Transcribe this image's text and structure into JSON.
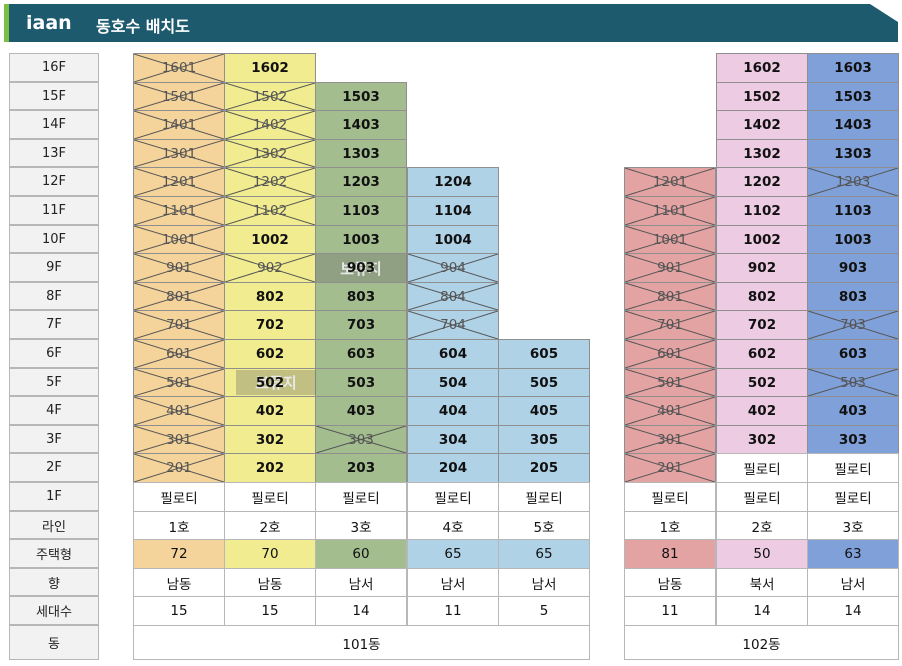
{
  "header": {
    "logo": "iaan",
    "title": "동호수 배치도"
  },
  "colors": {
    "header_bg": "#1e5a6e",
    "header_accent": "#7cc043",
    "b101_line1": "#f5d49b",
    "b101_line2": "#f0ec8f",
    "b101_line3": "#a3bd8f",
    "b101_line4": "#afd2e6",
    "b101_line5": "#afd2e6",
    "b102_line1": "#e3a3a3",
    "b102_line2": "#edcbe3",
    "b102_line3": "#7fa0d8"
  },
  "floor_labels": [
    "16F",
    "15F",
    "14F",
    "13F",
    "12F",
    "11F",
    "10F",
    "9F",
    "8F",
    "7F",
    "6F",
    "5F",
    "4F",
    "3F",
    "2F",
    "1F"
  ],
  "row_labels": {
    "line": "라인",
    "type": "주택형",
    "facing": "향",
    "households": "세대수",
    "building": "동"
  },
  "piloti": "필로티",
  "reserved_label": "보류지",
  "buildings": [
    {
      "name": "101동",
      "columns": [
        {
          "line": "1호",
          "type": "72",
          "facing": "남동",
          "households": "15",
          "color": "#f5d49b",
          "top_floor": 16,
          "piloti": true,
          "sold_floors": [
            16,
            15,
            14,
            13,
            12,
            11,
            10,
            9,
            8,
            7,
            6,
            5,
            4,
            3,
            2
          ]
        },
        {
          "line": "2호",
          "type": "70",
          "facing": "남동",
          "households": "15",
          "color": "#f0ec8f",
          "top_floor": 16,
          "piloti": true,
          "sold_floors": [
            15,
            14,
            13,
            12,
            11,
            9
          ]
        },
        {
          "line": "3호",
          "type": "60",
          "facing": "남서",
          "households": "14",
          "color": "#a3bd8f",
          "top_floor": 15,
          "piloti": true,
          "sold_floors": [
            3
          ]
        },
        {
          "line": "4호",
          "type": "65",
          "facing": "남서",
          "households": "11",
          "color": "#afd2e6",
          "top_floor": 12,
          "piloti": true,
          "sold_floors": [
            9,
            8,
            7
          ]
        },
        {
          "line": "5호",
          "type": "65",
          "facing": "남서",
          "households": "5",
          "color": "#afd2e6",
          "top_floor": 6,
          "piloti": true,
          "sold_floors": []
        }
      ]
    },
    {
      "name": "102동",
      "columns": [
        {
          "line": "1호",
          "type": "81",
          "facing": "남동",
          "households": "11",
          "color": "#e3a3a3",
          "top_floor": 12,
          "piloti": true,
          "sold_floors": [
            12,
            11,
            10,
            9,
            8,
            7,
            6,
            5,
            4,
            3,
            2
          ]
        },
        {
          "line": "2호",
          "type": "50",
          "facing": "북서",
          "households": "14",
          "color": "#edcbe3",
          "top_floor": 16,
          "piloti": true,
          "piloti_from": 2,
          "sold_floors": []
        },
        {
          "line": "3호",
          "type": "63",
          "facing": "남서",
          "households": "14",
          "color": "#7fa0d8",
          "top_floor": 16,
          "piloti": true,
          "piloti_from": 2,
          "sold_floors": [
            12,
            7,
            5
          ]
        }
      ]
    }
  ],
  "reserved_blocks": [
    {
      "building": "101동",
      "column": 2,
      "floor": 9,
      "span_columns": 1
    },
    {
      "building": "101동",
      "column": 1,
      "floor": 5,
      "span_columns": 2
    }
  ]
}
